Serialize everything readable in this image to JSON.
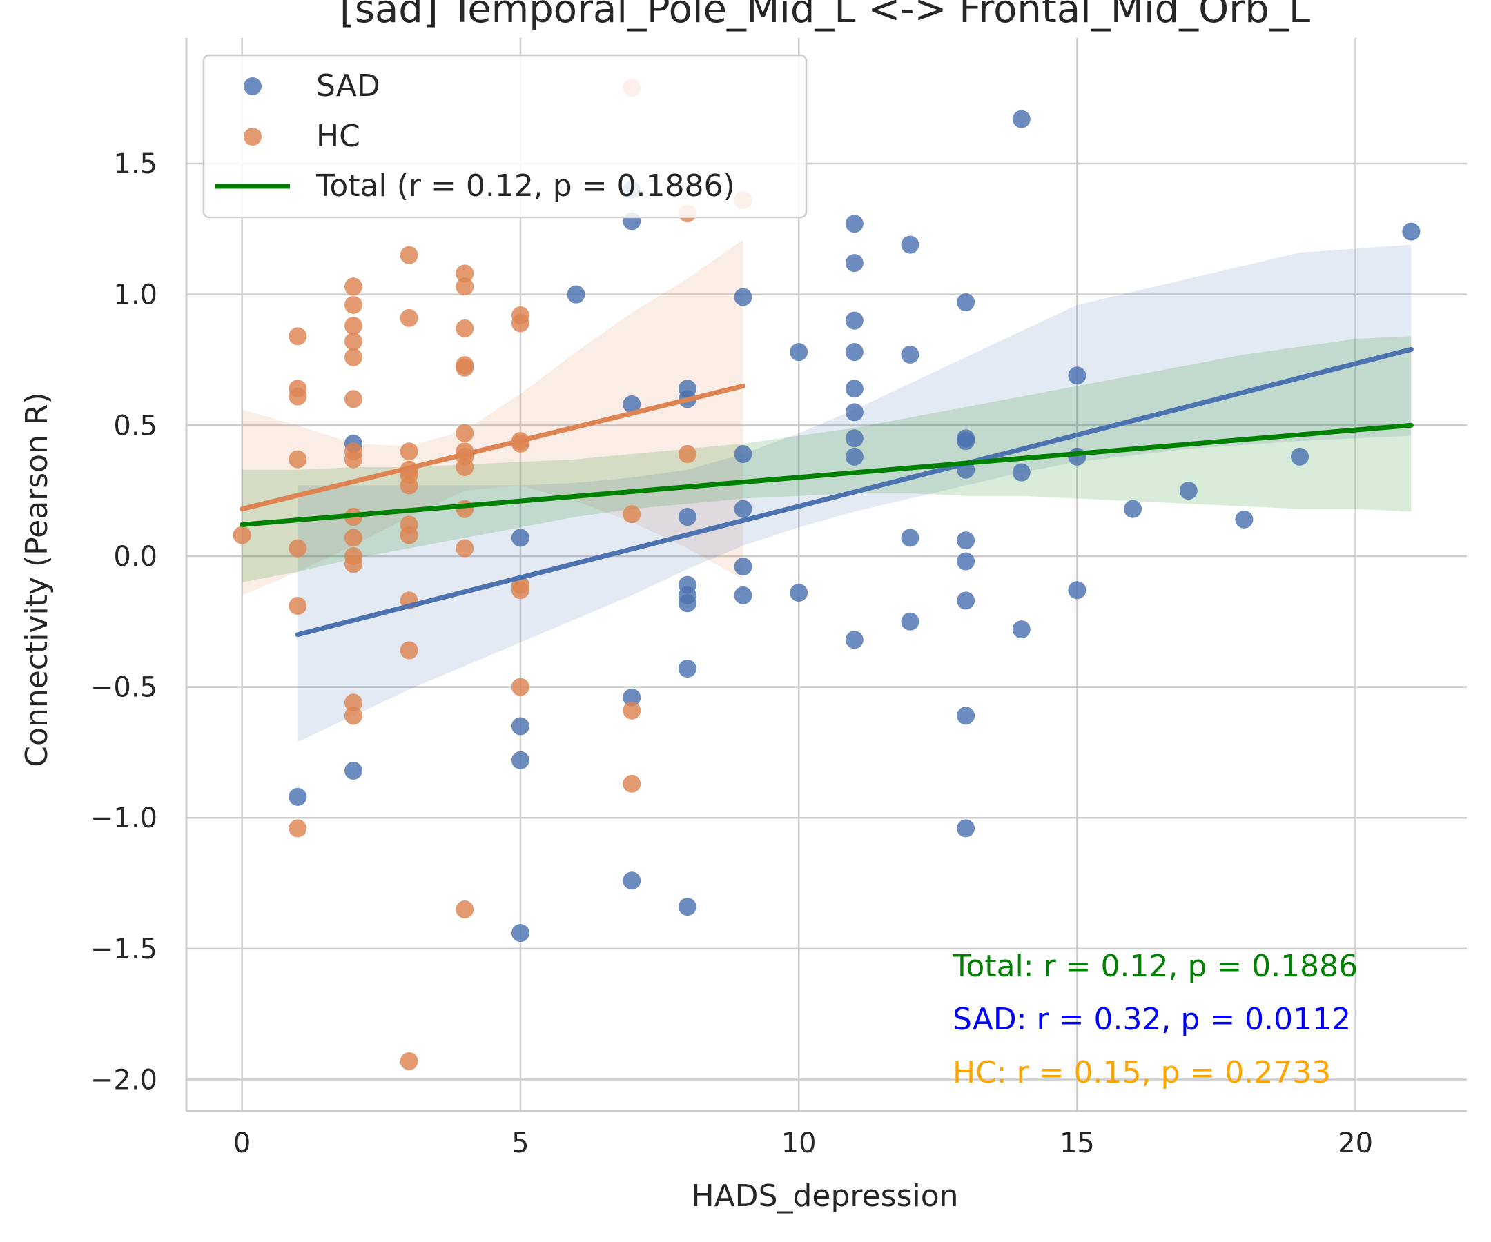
{
  "chart_data": {
    "type": "scatter",
    "title": "[sad] Temporal_Pole_Mid_L <-> Frontal_Mid_Orb_L",
    "xlabel": "HADS_depression",
    "ylabel": "Connectivity (Pearson R)",
    "xlim": [
      -1,
      22
    ],
    "ylim": [
      -2.12,
      1.98
    ],
    "x_ticks": [
      0,
      5,
      10,
      15,
      20
    ],
    "y_ticks": [
      -2.0,
      -1.5,
      -1.0,
      -0.5,
      0.0,
      0.5,
      1.0,
      1.5
    ],
    "x_tick_labels": [
      "0",
      "5",
      "10",
      "15",
      "20"
    ],
    "y_tick_labels": [
      "−2.0",
      "−1.5",
      "−1.0",
      "−0.5",
      "0.0",
      "0.5",
      "1.0",
      "1.5"
    ],
    "grid": true,
    "legend_position": "top-left",
    "colors": {
      "SAD": "#4c72b0",
      "HC": "#dd8452",
      "Total": "#008000"
    },
    "series": [
      {
        "name": "SAD",
        "type": "scatter",
        "color": "#4c72b0",
        "x": [
          1,
          2,
          2,
          5,
          5,
          5,
          5,
          6,
          7,
          7,
          7,
          7,
          7,
          8,
          8,
          8,
          8,
          8,
          8,
          8,
          8,
          9,
          9,
          9,
          9,
          9,
          10,
          10,
          11,
          11,
          11,
          11,
          11,
          11,
          11,
          11,
          11,
          12,
          12,
          12,
          12,
          13,
          13,
          13,
          13,
          13,
          13,
          13,
          13,
          13,
          14,
          14,
          14,
          15,
          15,
          15,
          16,
          17,
          18,
          19,
          21
        ],
        "y": [
          -0.92,
          0.43,
          -0.82,
          0.07,
          -0.65,
          -0.78,
          -1.44,
          1.0,
          1.28,
          0.58,
          -0.54,
          -1.24,
          1.4,
          0.64,
          0.6,
          0.15,
          -0.11,
          -0.15,
          -0.18,
          -0.43,
          -1.34,
          0.99,
          0.39,
          0.18,
          -0.04,
          -0.15,
          0.78,
          -0.14,
          1.27,
          1.12,
          0.9,
          0.78,
          0.64,
          0.55,
          0.45,
          0.38,
          -0.32,
          1.19,
          0.77,
          0.07,
          -0.25,
          0.97,
          0.45,
          0.44,
          0.33,
          0.06,
          -0.02,
          -0.17,
          -0.61,
          -1.04,
          1.67,
          0.32,
          -0.28,
          0.69,
          0.38,
          -0.13,
          0.18,
          0.25,
          0.14,
          0.38,
          1.24
        ]
      },
      {
        "name": "HC",
        "type": "scatter",
        "color": "#dd8452",
        "x": [
          0,
          1,
          1,
          1,
          1,
          1,
          1,
          1,
          2,
          2,
          2,
          2,
          2,
          2,
          2,
          2,
          2,
          2,
          2,
          2,
          2,
          2,
          3,
          3,
          3,
          3,
          3,
          3,
          3,
          3,
          3,
          3,
          3,
          4,
          4,
          4,
          4,
          4,
          4,
          4,
          4,
          4,
          4,
          4,
          4,
          5,
          5,
          5,
          5,
          5,
          5,
          5,
          7,
          7,
          7,
          7,
          8,
          8,
          9
        ],
        "y": [
          0.08,
          0.84,
          0.64,
          0.61,
          0.37,
          0.03,
          -0.19,
          -1.04,
          1.03,
          0.96,
          0.88,
          0.82,
          0.76,
          0.6,
          0.4,
          0.37,
          0.15,
          0.07,
          0.0,
          -0.03,
          -0.56,
          -0.61,
          1.15,
          0.91,
          0.4,
          0.33,
          0.27,
          0.12,
          0.08,
          -0.17,
          -0.36,
          -1.93,
          0.31,
          1.08,
          1.03,
          0.87,
          0.73,
          0.72,
          0.47,
          0.4,
          0.38,
          0.34,
          0.18,
          0.03,
          -1.35,
          0.92,
          0.89,
          0.44,
          -0.11,
          -0.13,
          -0.5,
          0.43,
          1.79,
          0.16,
          -0.59,
          -0.87,
          1.31,
          0.39,
          1.36
        ]
      }
    ],
    "fits": [
      {
        "name": "HC",
        "color": "#dd8452",
        "x": [
          0,
          9
        ],
        "y": [
          0.18,
          0.65
        ],
        "ci_upper": [
          0.56,
          0.5,
          0.43,
          0.42,
          0.48,
          0.62,
          0.78,
          0.93,
          1.06,
          1.21
        ],
        "ci_lower": [
          -0.15,
          -0.06,
          0.04,
          0.15,
          0.25,
          0.27,
          0.21,
          0.13,
          0.03,
          -0.09
        ]
      },
      {
        "name": "SAD",
        "color": "#4c72b0",
        "x": [
          1,
          21
        ],
        "y": [
          -0.3,
          0.79
        ],
        "ci_upper": [
          0.27,
          0.27,
          0.27,
          0.27,
          0.27,
          0.28,
          0.3,
          0.33,
          0.39,
          0.47,
          0.56,
          0.66,
          0.76,
          0.86,
          0.96,
          1.06,
          1.16,
          1.19
        ],
        "ci_lower": [
          -0.71,
          -0.61,
          -0.51,
          -0.42,
          -0.33,
          -0.24,
          -0.15,
          -0.05,
          0.04,
          0.11,
          0.17,
          0.22,
          0.27,
          0.32,
          0.36,
          0.41,
          0.44,
          0.46
        ],
        "ci_x": [
          1,
          2,
          3,
          4,
          5,
          6,
          7,
          8,
          9,
          10,
          11,
          12,
          13,
          14,
          15,
          17,
          19,
          21
        ]
      },
      {
        "name": "Total",
        "color": "#008000",
        "x": [
          0,
          21
        ],
        "y": [
          0.12,
          0.5
        ],
        "ci_upper": [
          0.33,
          0.33,
          0.34,
          0.34,
          0.35,
          0.36,
          0.37,
          0.39,
          0.41,
          0.43,
          0.46,
          0.49,
          0.53,
          0.57,
          0.61,
          0.65,
          0.69,
          0.73,
          0.77,
          0.8,
          0.83,
          0.84
        ],
        "ci_lower": [
          -0.1,
          -0.06,
          -0.01,
          0.03,
          0.07,
          0.11,
          0.15,
          0.18,
          0.2,
          0.22,
          0.23,
          0.24,
          0.24,
          0.23,
          0.23,
          0.22,
          0.21,
          0.2,
          0.19,
          0.18,
          0.18,
          0.17
        ]
      }
    ],
    "legend": [
      {
        "label": "SAD",
        "kind": "marker",
        "color": "#4c72b0"
      },
      {
        "label": "HC",
        "kind": "marker",
        "color": "#dd8452"
      },
      {
        "label": "Total (r = 0.12, p = 0.1886)",
        "kind": "line",
        "color": "#008000"
      }
    ],
    "annotations": [
      {
        "text": "Total: r = 0.12, p = 0.1886",
        "color": "#008000"
      },
      {
        "text": "SAD: r = 0.32, p = 0.0112",
        "color": "#0000ff"
      },
      {
        "text": "HC: r = 0.15, p = 0.2733",
        "color": "#ffa500"
      }
    ]
  }
}
